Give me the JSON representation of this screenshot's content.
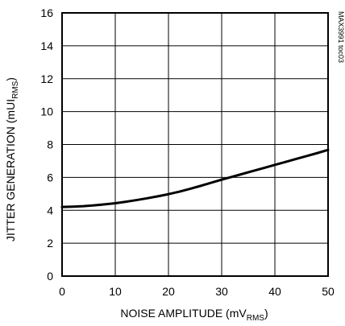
{
  "chart_data": {
    "type": "line",
    "xlabel": "NOISE AMPLITUDE (mV",
    "xlabel_sub": "RMS",
    "xlabel_end": ")",
    "ylabel": "JITTER GENERATION (mUI",
    "ylabel_sub": "RMS",
    "ylabel_end": ")",
    "xlim": [
      0,
      50
    ],
    "ylim": [
      0,
      16
    ],
    "xticks": [
      0,
      10,
      20,
      30,
      40,
      50
    ],
    "yticks": [
      0,
      2,
      4,
      6,
      8,
      10,
      12,
      14,
      16
    ],
    "grid": true,
    "annotation": "MAX3991 toc03",
    "series": [
      {
        "x": [
          0,
          2,
          4,
          6,
          8,
          10,
          12,
          14,
          16,
          18,
          20,
          22,
          24,
          26,
          28,
          30,
          32,
          34,
          36,
          38,
          40,
          42,
          44,
          46,
          48,
          50
        ],
        "values": [
          4.2,
          4.22,
          4.25,
          4.3,
          4.36,
          4.43,
          4.52,
          4.62,
          4.73,
          4.85,
          4.98,
          5.13,
          5.3,
          5.48,
          5.67,
          5.86,
          6.04,
          6.22,
          6.4,
          6.58,
          6.76,
          6.94,
          7.12,
          7.3,
          7.48,
          7.67
        ],
        "color": "#000000"
      }
    ]
  }
}
